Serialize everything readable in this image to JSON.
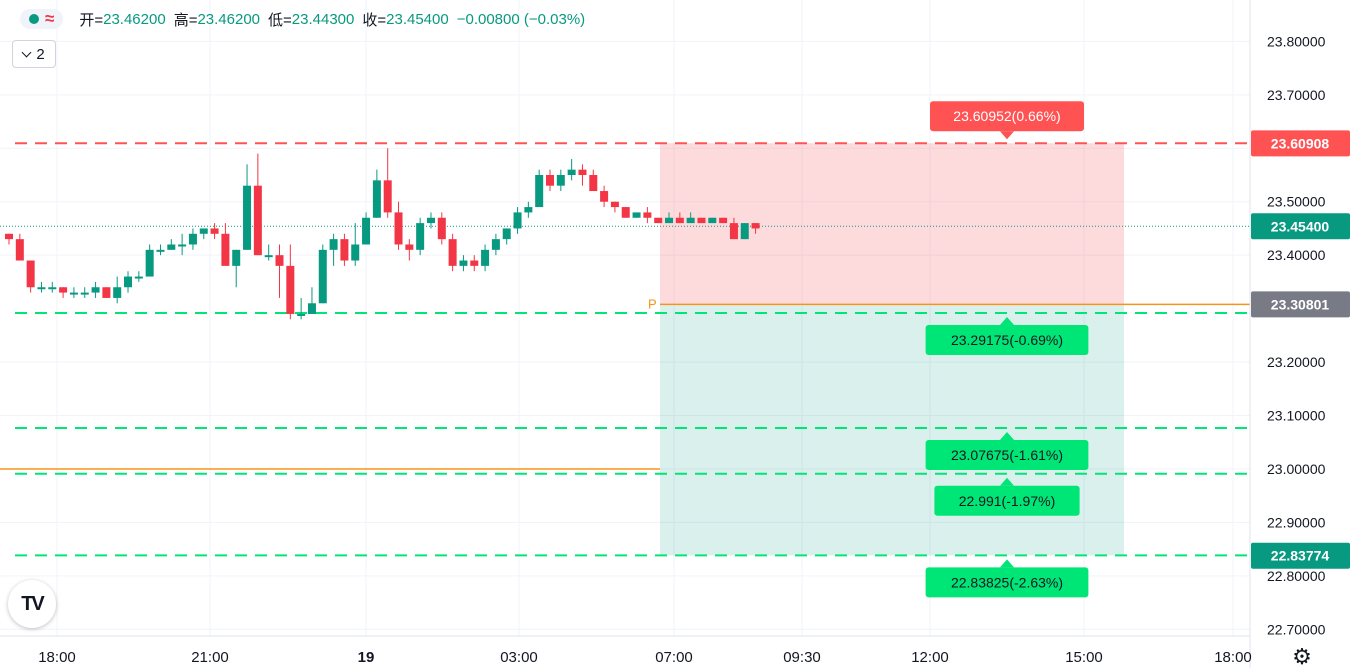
{
  "ohlc": {
    "open_label": "开=",
    "open_value": "23.46200",
    "high_label": "高=",
    "high_value": "23.46200",
    "low_label": "低=",
    "low_value": "23.44300",
    "close_label": "收=",
    "close_value": "23.45400",
    "change": "−0.00800 (−0.03%)"
  },
  "collapse_count": "2",
  "logo_text": "TV",
  "icons": {
    "status": "green-dot-icon",
    "wave": "approx-wave-icon",
    "chevron": "chevron-down-icon",
    "logo": "tradingview-logo-icon",
    "settings": "gear-icon"
  },
  "colors": {
    "up": "#089981",
    "down": "#f23645",
    "tp": "#00e676",
    "sl": "#ff5252",
    "pivot": "#f7931a",
    "gray": "#787b86",
    "grid": "#f0f3fa",
    "text": "#131722"
  },
  "chart_data": {
    "type": "candlestick",
    "x_labels": [
      "18:00",
      "21:00",
      "19",
      "03:00",
      "07:00",
      "09:30",
      "12:00",
      "15:00",
      "18:00"
    ],
    "y_ticks": [
      "23.80000",
      "23.70000",
      "23.60000",
      "23.50000",
      "23.40000",
      "23.20000",
      "23.10000",
      "23.00000",
      "22.90000",
      "22.80000",
      "22.70000"
    ],
    "y_range": [
      22.68,
      23.84
    ],
    "last_price": "23.45400",
    "right_labels": [
      {
        "value": 23.60908,
        "text": "23.60908",
        "kind": "sl"
      },
      {
        "value": 23.454,
        "text": "23.45400",
        "kind": "up"
      },
      {
        "value": 23.30801,
        "text": "23.30801",
        "kind": "gray"
      },
      {
        "value": 22.83774,
        "text": "22.83774",
        "kind": "up"
      }
    ],
    "dashed_lines": [
      {
        "value": 23.60952,
        "kind": "sl"
      },
      {
        "value": 23.29175,
        "kind": "tp"
      },
      {
        "value": 23.07675,
        "kind": "tp"
      },
      {
        "value": 22.991,
        "kind": "tp"
      },
      {
        "value": 22.83825,
        "kind": "tp"
      }
    ],
    "callouts": [
      {
        "value": 23.60952,
        "text": "23.60952(0.66%)",
        "kind": "sl",
        "side": "above"
      },
      {
        "value": 23.29175,
        "text": "23.29175(-0.69%)",
        "kind": "tp",
        "side": "below"
      },
      {
        "value": 23.07675,
        "text": "23.07675(-1.61%)",
        "kind": "tp",
        "side": "below"
      },
      {
        "value": 22.991,
        "text": "22.991(-1.97%)",
        "kind": "tp",
        "side": "below"
      },
      {
        "value": 22.83825,
        "text": "22.83825(-2.63%)",
        "kind": "tp",
        "side": "below"
      }
    ],
    "position": {
      "entry": 23.30801,
      "stop": 23.60952,
      "target": 22.83825,
      "label": "P"
    },
    "orange_line": 23.0,
    "candles": [
      [
        23.44,
        23.43,
        23.44,
        23.42
      ],
      [
        23.43,
        23.39,
        23.44,
        23.39
      ],
      [
        23.39,
        23.34,
        23.39,
        23.33
      ],
      [
        23.34,
        23.34,
        23.35,
        23.33
      ],
      [
        23.34,
        23.34,
        23.35,
        23.33
      ],
      [
        23.34,
        23.33,
        23.34,
        23.32
      ],
      [
        23.33,
        23.33,
        23.34,
        23.32
      ],
      [
        23.33,
        23.33,
        23.34,
        23.32
      ],
      [
        23.33,
        23.34,
        23.35,
        23.32
      ],
      [
        23.34,
        23.32,
        23.34,
        23.32
      ],
      [
        23.32,
        23.34,
        23.36,
        23.31
      ],
      [
        23.34,
        23.36,
        23.37,
        23.33
      ],
      [
        23.36,
        23.36,
        23.37,
        23.35
      ],
      [
        23.36,
        23.41,
        23.42,
        23.36
      ],
      [
        23.41,
        23.41,
        23.42,
        23.4
      ],
      [
        23.41,
        23.42,
        23.43,
        23.41
      ],
      [
        23.42,
        23.42,
        23.44,
        23.4
      ],
      [
        23.42,
        23.44,
        23.45,
        23.41
      ],
      [
        23.44,
        23.45,
        23.45,
        23.43
      ],
      [
        23.45,
        23.44,
        23.46,
        23.43
      ],
      [
        23.44,
        23.38,
        23.46,
        23.38
      ],
      [
        23.38,
        23.41,
        23.41,
        23.34
      ],
      [
        23.41,
        23.53,
        23.57,
        23.41
      ],
      [
        23.53,
        23.4,
        23.59,
        23.4
      ],
      [
        23.4,
        23.4,
        23.42,
        23.39
      ],
      [
        23.4,
        23.38,
        23.42,
        23.32
      ],
      [
        23.38,
        23.29,
        23.42,
        23.28
      ],
      [
        23.29,
        23.29,
        23.32,
        23.28
      ],
      [
        23.29,
        23.31,
        23.34,
        23.3
      ],
      [
        23.31,
        23.41,
        23.42,
        23.31
      ],
      [
        23.41,
        23.43,
        23.44,
        23.38
      ],
      [
        23.43,
        23.39,
        23.44,
        23.38
      ],
      [
        23.39,
        23.42,
        23.46,
        23.38
      ],
      [
        23.42,
        23.47,
        23.48,
        23.42
      ],
      [
        23.47,
        23.54,
        23.56,
        23.47
      ],
      [
        23.54,
        23.48,
        23.6,
        23.47
      ],
      [
        23.48,
        23.42,
        23.5,
        23.41
      ],
      [
        23.42,
        23.41,
        23.43,
        23.39
      ],
      [
        23.41,
        23.46,
        23.47,
        23.4
      ],
      [
        23.46,
        23.47,
        23.48,
        23.45
      ],
      [
        23.47,
        23.43,
        23.48,
        23.42
      ],
      [
        23.43,
        23.38,
        23.44,
        23.37
      ],
      [
        23.38,
        23.39,
        23.4,
        23.37
      ],
      [
        23.39,
        23.38,
        23.4,
        23.37
      ],
      [
        23.38,
        23.41,
        23.42,
        23.37
      ],
      [
        23.41,
        23.43,
        23.44,
        23.4
      ],
      [
        23.43,
        23.45,
        23.45,
        23.42
      ],
      [
        23.45,
        23.48,
        23.49,
        23.44
      ],
      [
        23.48,
        23.49,
        23.5,
        23.47
      ],
      [
        23.49,
        23.55,
        23.56,
        23.49
      ],
      [
        23.55,
        23.53,
        23.56,
        23.52
      ],
      [
        23.53,
        23.55,
        23.56,
        23.52
      ],
      [
        23.55,
        23.56,
        23.58,
        23.54
      ],
      [
        23.56,
        23.55,
        23.57,
        23.53
      ],
      [
        23.55,
        23.52,
        23.56,
        23.52
      ],
      [
        23.52,
        23.5,
        23.53,
        23.49
      ],
      [
        23.5,
        23.49,
        23.5,
        23.48
      ],
      [
        23.49,
        23.47,
        23.49,
        23.47
      ],
      [
        23.47,
        23.48,
        23.48,
        23.47
      ],
      [
        23.48,
        23.47,
        23.49,
        23.46
      ],
      [
        23.47,
        23.46,
        23.47,
        23.46
      ],
      [
        23.46,
        23.47,
        23.48,
        23.46
      ],
      [
        23.47,
        23.46,
        23.48,
        23.46
      ],
      [
        23.46,
        23.47,
        23.48,
        23.46
      ],
      [
        23.47,
        23.46,
        23.47,
        23.46
      ],
      [
        23.46,
        23.47,
        23.47,
        23.46
      ],
      [
        23.47,
        23.46,
        23.47,
        23.46
      ],
      [
        23.46,
        23.43,
        23.47,
        23.43
      ],
      [
        23.43,
        23.46,
        23.46,
        23.43
      ],
      [
        23.46,
        23.45,
        23.46,
        23.44
      ]
    ]
  }
}
